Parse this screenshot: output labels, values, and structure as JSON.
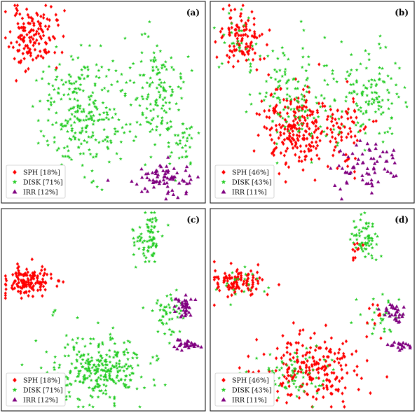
{
  "colors": {
    "SPH": "#ff0000",
    "DISK": "#22cc22",
    "IRR": "#800080"
  },
  "markers": {
    "SPH": "diamond",
    "DISK": "star",
    "IRR": "triangle"
  },
  "chart_data": [
    {
      "type": "scatter",
      "label": "(a)",
      "legend": [
        {
          "name": "SPH",
          "text": "SPH [18%]",
          "fraction": 0.18
        },
        {
          "name": "DISK",
          "text": "DISK [71%]",
          "fraction": 0.71
        },
        {
          "name": "IRR",
          "text": "IRR [12%]",
          "fraction": 0.12
        }
      ],
      "legend_position": "lower-left",
      "axes": "none",
      "clusters": [
        {
          "class": "SPH",
          "n": 140,
          "cx": 0.15,
          "cy": 0.82,
          "sx": 0.055,
          "sy": 0.075,
          "seed": 11
        },
        {
          "class": "DISK",
          "n": 260,
          "cx": 0.4,
          "cy": 0.45,
          "sx": 0.1,
          "sy": 0.14,
          "seed": 12
        },
        {
          "class": "DISK",
          "n": 130,
          "cx": 0.74,
          "cy": 0.55,
          "sx": 0.075,
          "sy": 0.13,
          "seed": 13
        },
        {
          "class": "DISK",
          "n": 40,
          "cx": 0.88,
          "cy": 0.3,
          "sx": 0.04,
          "sy": 0.07,
          "seed": 14
        },
        {
          "class": "IRR",
          "n": 70,
          "cx": 0.8,
          "cy": 0.12,
          "sx": 0.08,
          "sy": 0.05,
          "seed": 15
        }
      ]
    },
    {
      "type": "scatter",
      "label": "(b)",
      "legend": [
        {
          "name": "SPH",
          "text": "SPH [46%]",
          "fraction": 0.46
        },
        {
          "name": "DISK",
          "text": "DISK [43%]",
          "fraction": 0.43
        },
        {
          "name": "IRR",
          "text": "IRR [11%]",
          "fraction": 0.11
        }
      ],
      "legend_position": "lower-left",
      "axes": "none",
      "clusters": [
        {
          "class": "SPH",
          "n": 110,
          "cx": 0.15,
          "cy": 0.82,
          "sx": 0.055,
          "sy": 0.075,
          "seed": 21
        },
        {
          "class": "DISK",
          "n": 30,
          "cx": 0.15,
          "cy": 0.82,
          "sx": 0.05,
          "sy": 0.07,
          "seed": 22
        },
        {
          "class": "SPH",
          "n": 230,
          "cx": 0.42,
          "cy": 0.36,
          "sx": 0.09,
          "sy": 0.1,
          "seed": 23
        },
        {
          "class": "DISK",
          "n": 130,
          "cx": 0.4,
          "cy": 0.52,
          "sx": 0.11,
          "sy": 0.12,
          "seed": 24
        },
        {
          "class": "DISK",
          "n": 120,
          "cx": 0.78,
          "cy": 0.52,
          "sx": 0.08,
          "sy": 0.12,
          "seed": 25
        },
        {
          "class": "SPH",
          "n": 50,
          "cx": 0.68,
          "cy": 0.35,
          "sx": 0.06,
          "sy": 0.1,
          "seed": 26
        },
        {
          "class": "IRR",
          "n": 65,
          "cx": 0.78,
          "cy": 0.18,
          "sx": 0.09,
          "sy": 0.06,
          "seed": 27
        }
      ]
    },
    {
      "type": "scatter",
      "label": "(c)",
      "legend": [
        {
          "name": "SPH",
          "text": "SPH [18%]",
          "fraction": 0.18
        },
        {
          "name": "DISK",
          "text": "DISK [71%]",
          "fraction": 0.71
        },
        {
          "name": "IRR",
          "text": "IRR [12%]",
          "fraction": 0.12
        }
      ],
      "legend_position": "lower-left",
      "axes": "none",
      "clusters": [
        {
          "class": "SPH",
          "n": 140,
          "cx": 0.13,
          "cy": 0.64,
          "sx": 0.06,
          "sy": 0.035,
          "seed": 31
        },
        {
          "class": "DISK",
          "n": 4,
          "cx": 0.26,
          "cy": 0.49,
          "sx": 0.008,
          "sy": 0.006,
          "seed": 32
        },
        {
          "class": "DISK",
          "n": 80,
          "cx": 0.72,
          "cy": 0.85,
          "sx": 0.035,
          "sy": 0.06,
          "seed": 33
        },
        {
          "class": "DISK",
          "n": 300,
          "cx": 0.46,
          "cy": 0.2,
          "sx": 0.12,
          "sy": 0.08,
          "seed": 34
        },
        {
          "class": "DISK",
          "n": 45,
          "cx": 0.82,
          "cy": 0.48,
          "sx": 0.04,
          "sy": 0.05,
          "seed": 35
        },
        {
          "class": "IRR",
          "n": 35,
          "cx": 0.9,
          "cy": 0.5,
          "sx": 0.025,
          "sy": 0.03,
          "seed": 36
        },
        {
          "class": "IRR",
          "n": 30,
          "cx": 0.91,
          "cy": 0.33,
          "sx": 0.03,
          "sy": 0.012,
          "seed": 37
        }
      ]
    },
    {
      "type": "scatter",
      "label": "(d)",
      "legend": [
        {
          "name": "SPH",
          "text": "SPH [46%]",
          "fraction": 0.46
        },
        {
          "name": "DISK",
          "text": "DISK [43%]",
          "fraction": 0.43
        },
        {
          "name": "IRR",
          "text": "IRR [11%]",
          "fraction": 0.11
        }
      ],
      "legend_position": "lower-left",
      "axes": "none",
      "clusters": [
        {
          "class": "SPH",
          "n": 110,
          "cx": 0.14,
          "cy": 0.64,
          "sx": 0.06,
          "sy": 0.035,
          "seed": 41
        },
        {
          "class": "DISK",
          "n": 20,
          "cx": 0.14,
          "cy": 0.64,
          "sx": 0.06,
          "sy": 0.035,
          "seed": 42
        },
        {
          "class": "DISK",
          "n": 65,
          "cx": 0.76,
          "cy": 0.84,
          "sx": 0.035,
          "sy": 0.06,
          "seed": 43
        },
        {
          "class": "SPH",
          "n": 10,
          "cx": 0.72,
          "cy": 0.78,
          "sx": 0.02,
          "sy": 0.03,
          "seed": 44
        },
        {
          "class": "SPH",
          "n": 220,
          "cx": 0.5,
          "cy": 0.2,
          "sx": 0.11,
          "sy": 0.08,
          "seed": 45
        },
        {
          "class": "DISK",
          "n": 70,
          "cx": 0.42,
          "cy": 0.18,
          "sx": 0.09,
          "sy": 0.07,
          "seed": 46
        },
        {
          "class": "DISK",
          "n": 30,
          "cx": 0.84,
          "cy": 0.46,
          "sx": 0.05,
          "sy": 0.05,
          "seed": 47
        },
        {
          "class": "SPH",
          "n": 10,
          "cx": 0.82,
          "cy": 0.45,
          "sx": 0.04,
          "sy": 0.05,
          "seed": 48
        },
        {
          "class": "IRR",
          "n": 30,
          "cx": 0.9,
          "cy": 0.48,
          "sx": 0.03,
          "sy": 0.03,
          "seed": 49
        },
        {
          "class": "IRR",
          "n": 20,
          "cx": 0.92,
          "cy": 0.32,
          "sx": 0.03,
          "sy": 0.012,
          "seed": 50
        }
      ]
    }
  ]
}
